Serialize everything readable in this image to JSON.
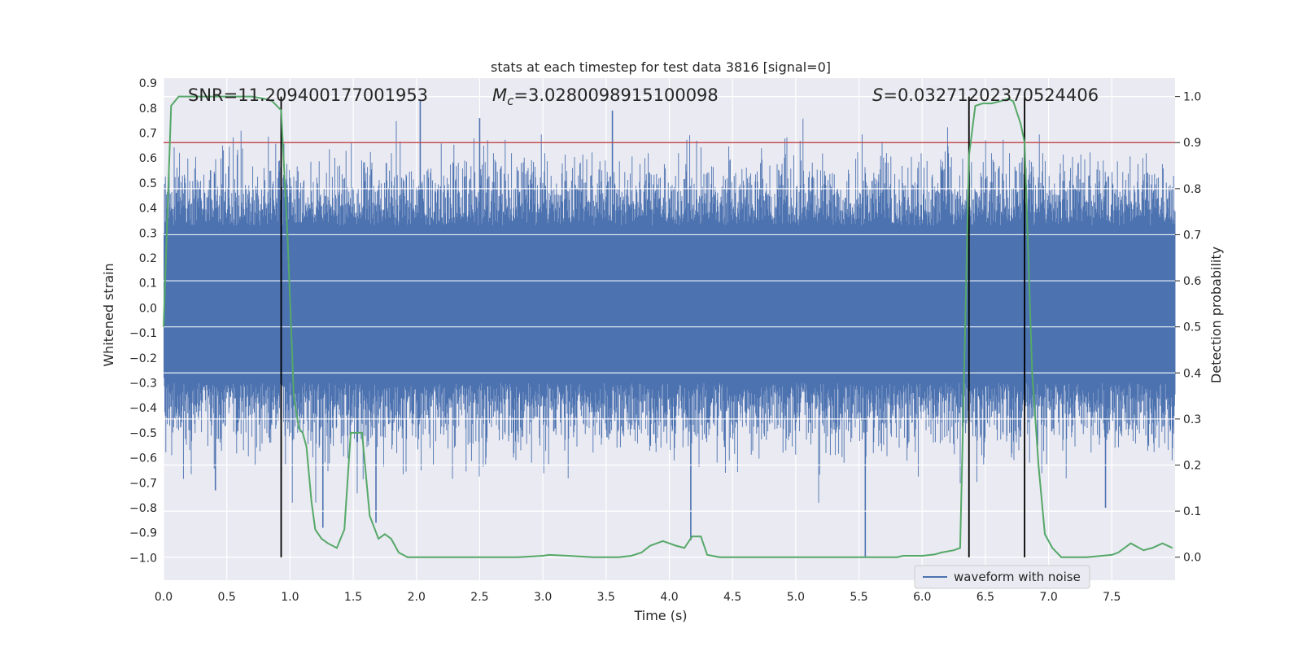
{
  "chart_data": {
    "type": "line",
    "title": "stats at each timestep for test data 3816 [signal=0]",
    "xlabel": "Time (s)",
    "ylabel": "Whitened strain",
    "ylabel_right": "Detection probability",
    "xlim": [
      0.0,
      8.0
    ],
    "ylim": [
      -1.09,
      0.92
    ],
    "ylim_right": [
      -0.05,
      1.04
    ],
    "x_ticks": [
      "0.0",
      "0.5",
      "1.0",
      "1.5",
      "2.0",
      "2.5",
      "3.0",
      "3.5",
      "4.0",
      "4.5",
      "5.0",
      "5.5",
      "6.0",
      "6.5",
      "7.0",
      "7.5"
    ],
    "x_tick_values": [
      0,
      0.5,
      1,
      1.5,
      2,
      2.5,
      3,
      3.5,
      4,
      4.5,
      5,
      5.5,
      6,
      6.5,
      7,
      7.5
    ],
    "y_ticks": [
      "0.9",
      "0.8",
      "0.7",
      "0.6",
      "0.5",
      "0.4",
      "0.3",
      "0.2",
      "0.1",
      "0.0",
      "−0.1",
      "−0.2",
      "−0.3",
      "−0.4",
      "−0.5",
      "−0.6",
      "−0.7",
      "−0.8",
      "−0.9",
      "−1.0"
    ],
    "y_tick_values": [
      0.9,
      0.8,
      0.7,
      0.6,
      0.5,
      0.4,
      0.3,
      0.2,
      0.1,
      0.0,
      -0.1,
      -0.2,
      -0.3,
      -0.4,
      -0.5,
      -0.6,
      -0.7,
      -0.8,
      -0.9,
      -1.0
    ],
    "y_ticks_right": [
      "1.0",
      "0.9",
      "0.8",
      "0.7",
      "0.6",
      "0.5",
      "0.4",
      "0.3",
      "0.2",
      "0.1",
      "0.0"
    ],
    "y_tick_values_right": [
      1.0,
      0.9,
      0.8,
      0.7,
      0.6,
      0.5,
      0.4,
      0.3,
      0.2,
      0.1,
      0.0
    ],
    "annotations": {
      "snr": "SNR=11.209400177001953",
      "mc_symbol": "M",
      "mc_sub": "c",
      "mc_value": "=3.0280098915100098",
      "s_symbol": "S",
      "s_value": "=0.03271202370524406"
    },
    "threshold": 0.9,
    "vertical_markers": [
      0.93,
      6.37,
      6.81
    ],
    "legend": {
      "label": "waveform with noise",
      "placement": "lower-right"
    },
    "series": [
      {
        "name": "waveform with noise",
        "axis": "left",
        "kind": "noise",
        "core_band": [
          -0.28,
          0.3
        ],
        "notable_spikes": [
          {
            "x": 2.03,
            "y": 0.83
          },
          {
            "x": 2.5,
            "y": 0.76
          },
          {
            "x": 3.55,
            "y": 0.79
          },
          {
            "x": 5.55,
            "y": -1.0
          },
          {
            "x": 4.17,
            "y": -0.93
          },
          {
            "x": 1.26,
            "y": -0.88
          },
          {
            "x": 1.68,
            "y": -0.86
          },
          {
            "x": 7.45,
            "y": -0.8
          },
          {
            "x": 0.41,
            "y": -0.73
          }
        ]
      },
      {
        "name": "detection probability",
        "axis": "right",
        "color": "#55a868",
        "x": [
          0.0,
          0.06,
          0.12,
          0.2,
          0.3,
          0.4,
          0.5,
          0.6,
          0.7,
          0.8,
          0.86,
          0.93,
          0.98,
          1.03,
          1.07,
          1.1,
          1.13,
          1.17,
          1.2,
          1.25,
          1.3,
          1.37,
          1.43,
          1.48,
          1.52,
          1.57,
          1.63,
          1.7,
          1.75,
          1.8,
          1.86,
          1.93,
          2.0,
          2.1,
          2.2,
          2.4,
          2.6,
          2.8,
          3.0,
          3.05,
          3.2,
          3.4,
          3.6,
          3.7,
          3.78,
          3.85,
          3.9,
          3.95,
          4.0,
          4.05,
          4.12,
          4.18,
          4.25,
          4.3,
          4.4,
          4.6,
          4.8,
          5.0,
          5.2,
          5.5,
          5.8,
          5.85,
          6.0,
          6.1,
          6.15,
          6.25,
          6.3,
          6.34,
          6.37,
          6.42,
          6.48,
          6.55,
          6.62,
          6.68,
          6.72,
          6.78,
          6.81,
          6.87,
          6.92,
          6.97,
          7.03,
          7.1,
          7.3,
          7.5,
          7.55,
          7.65,
          7.75,
          7.82,
          7.9,
          7.98
        ],
        "values": [
          0.5,
          0.98,
          1.0,
          1.0,
          1.0,
          1.0,
          1.0,
          1.0,
          1.0,
          0.995,
          0.99,
          0.97,
          0.7,
          0.35,
          0.28,
          0.27,
          0.24,
          0.12,
          0.06,
          0.04,
          0.03,
          0.02,
          0.06,
          0.27,
          0.27,
          0.27,
          0.09,
          0.04,
          0.05,
          0.04,
          0.01,
          0.0,
          0.0,
          0.0,
          0.0,
          0.0,
          0.0,
          0.0,
          0.003,
          0.005,
          0.003,
          0.0,
          0.0,
          0.003,
          0.01,
          0.025,
          0.03,
          0.035,
          0.03,
          0.025,
          0.02,
          0.045,
          0.045,
          0.005,
          0.0,
          0.0,
          0.0,
          0.0,
          0.0,
          0.0,
          0.0,
          0.003,
          0.003,
          0.006,
          0.01,
          0.015,
          0.02,
          0.5,
          0.87,
          0.98,
          0.985,
          0.985,
          0.99,
          0.995,
          0.99,
          0.94,
          0.9,
          0.4,
          0.2,
          0.05,
          0.02,
          0.0,
          0.0,
          0.005,
          0.01,
          0.03,
          0.015,
          0.02,
          0.03,
          0.02
        ]
      }
    ]
  }
}
